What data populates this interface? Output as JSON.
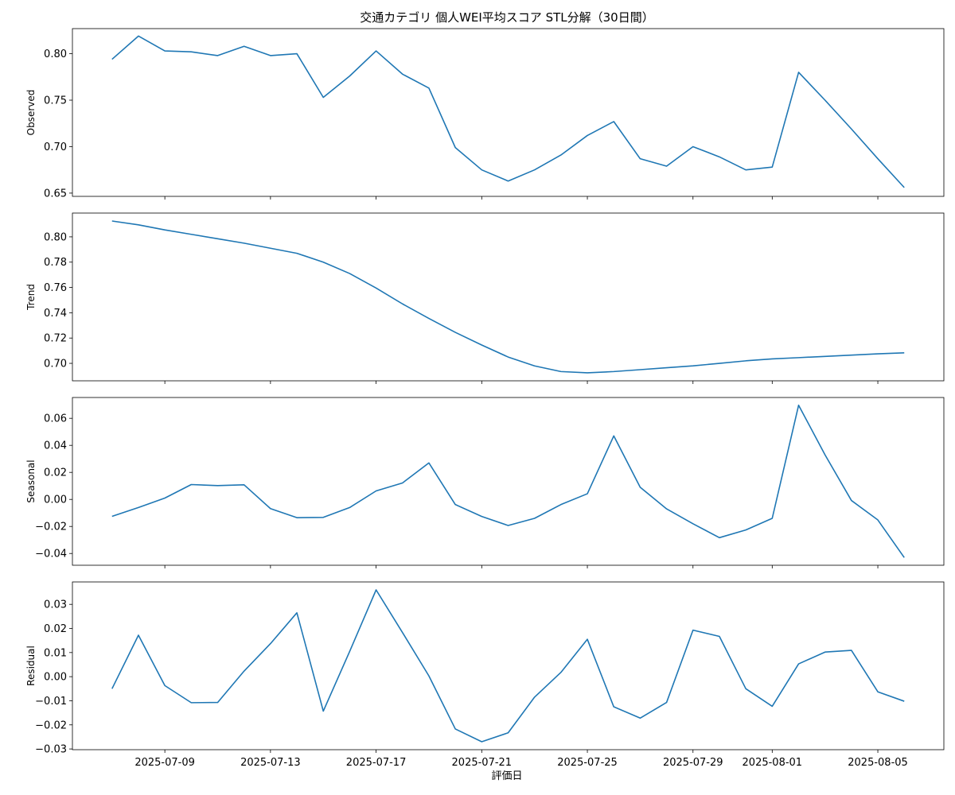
{
  "figure": {
    "title": "交通カテゴリ 個人WEI平均スコア STL分解（30日間）",
    "xlabel": "評価日"
  },
  "chart_data": [
    {
      "type": "line",
      "ylabel": "Observed",
      "series": [
        {
          "color": "#1f77b4",
          "x": [
            "2025-07-07",
            "2025-07-08",
            "2025-07-09",
            "2025-07-10",
            "2025-07-11",
            "2025-07-12",
            "2025-07-13",
            "2025-07-14",
            "2025-07-15",
            "2025-07-16",
            "2025-07-17",
            "2025-07-18",
            "2025-07-19",
            "2025-07-20",
            "2025-07-21",
            "2025-07-22",
            "2025-07-23",
            "2025-07-24",
            "2025-07-25",
            "2025-07-26",
            "2025-07-27",
            "2025-07-28",
            "2025-07-29",
            "2025-07-30",
            "2025-07-31",
            "2025-08-01",
            "2025-08-02",
            "2025-08-03",
            "2025-08-04",
            "2025-08-05",
            "2025-08-06"
          ],
          "values": [
            0.794,
            0.819,
            0.803,
            0.802,
            0.798,
            0.808,
            0.798,
            0.8,
            0.753,
            0.776,
            0.803,
            0.778,
            0.763,
            0.699,
            0.675,
            0.663,
            0.675,
            0.691,
            0.712,
            0.727,
            0.687,
            0.679,
            0.7,
            0.689,
            0.675,
            0.678,
            0.78,
            0.75,
            0.719,
            0.687,
            0.656
          ]
        }
      ],
      "yticks": [
        0.65,
        0.7,
        0.75,
        0.8
      ],
      "ytick_labels": [
        "0.65",
        "0.70",
        "0.75",
        "0.80"
      ],
      "ylim": [
        0.6465,
        0.827
      ]
    },
    {
      "type": "line",
      "ylabel": "Trend",
      "series": [
        {
          "color": "#1f77b4",
          "x": [
            "2025-07-07",
            "2025-07-08",
            "2025-07-09",
            "2025-07-10",
            "2025-07-11",
            "2025-07-12",
            "2025-07-13",
            "2025-07-14",
            "2025-07-15",
            "2025-07-16",
            "2025-07-17",
            "2025-07-18",
            "2025-07-19",
            "2025-07-20",
            "2025-07-21",
            "2025-07-22",
            "2025-07-23",
            "2025-07-24",
            "2025-07-25",
            "2025-07-26",
            "2025-07-27",
            "2025-07-28",
            "2025-07-29",
            "2025-07-30",
            "2025-07-31",
            "2025-08-01",
            "2025-08-02",
            "2025-08-03",
            "2025-08-04",
            "2025-08-05",
            "2025-08-06"
          ],
          "values": [
            0.8125,
            0.8095,
            0.8055,
            0.802,
            0.7985,
            0.795,
            0.791,
            0.787,
            0.78,
            0.771,
            0.7595,
            0.747,
            0.7355,
            0.7245,
            0.7145,
            0.705,
            0.698,
            0.6935,
            0.6925,
            0.6935,
            0.695,
            0.6965,
            0.698,
            0.7,
            0.702,
            0.7035,
            0.7045,
            0.7055,
            0.7065,
            0.7075,
            0.7083
          ]
        }
      ],
      "yticks": [
        0.7,
        0.72,
        0.74,
        0.76,
        0.78,
        0.8
      ],
      "ytick_labels": [
        "0.70",
        "0.72",
        "0.74",
        "0.76",
        "0.78",
        "0.80"
      ],
      "ylim": [
        0.6862,
        0.8188
      ]
    },
    {
      "type": "line",
      "ylabel": "Seasonal",
      "series": [
        {
          "color": "#1f77b4",
          "x": [
            "2025-07-07",
            "2025-07-08",
            "2025-07-09",
            "2025-07-10",
            "2025-07-11",
            "2025-07-12",
            "2025-07-13",
            "2025-07-14",
            "2025-07-15",
            "2025-07-16",
            "2025-07-17",
            "2025-07-18",
            "2025-07-19",
            "2025-07-20",
            "2025-07-21",
            "2025-07-22",
            "2025-07-23",
            "2025-07-24",
            "2025-07-25",
            "2025-07-26",
            "2025-07-27",
            "2025-07-28",
            "2025-07-29",
            "2025-07-30",
            "2025-07-31",
            "2025-08-01",
            "2025-08-02",
            "2025-08-03",
            "2025-08-04",
            "2025-08-05",
            "2025-08-06"
          ],
          "values": [
            -0.0125,
            -0.006,
            0.001,
            0.011,
            0.0102,
            0.0108,
            -0.0068,
            -0.0135,
            -0.0133,
            -0.006,
            0.0063,
            0.0122,
            0.027,
            -0.0038,
            -0.0126,
            -0.0193,
            -0.014,
            -0.0038,
            0.0042,
            0.047,
            0.009,
            -0.007,
            -0.018,
            -0.0283,
            -0.0226,
            -0.014,
            0.0697,
            0.033,
            -0.0008,
            -0.0152,
            -0.043
          ]
        }
      ],
      "yticks": [
        -0.04,
        -0.02,
        0.0,
        0.02,
        0.04,
        0.06
      ],
      "ytick_labels": [
        "−0.04",
        "−0.02",
        "0.00",
        "0.02",
        "0.04",
        "0.06"
      ],
      "ylim": [
        -0.0487,
        0.0754
      ]
    },
    {
      "type": "line",
      "ylabel": "Residual",
      "series": [
        {
          "color": "#1f77b4",
          "x": [
            "2025-07-07",
            "2025-07-08",
            "2025-07-09",
            "2025-07-10",
            "2025-07-11",
            "2025-07-12",
            "2025-07-13",
            "2025-07-14",
            "2025-07-15",
            "2025-07-16",
            "2025-07-17",
            "2025-07-18",
            "2025-07-19",
            "2025-07-20",
            "2025-07-21",
            "2025-07-22",
            "2025-07-23",
            "2025-07-24",
            "2025-07-25",
            "2025-07-26",
            "2025-07-27",
            "2025-07-28",
            "2025-07-29",
            "2025-07-30",
            "2025-07-31",
            "2025-08-01",
            "2025-08-02",
            "2025-08-03",
            "2025-08-04",
            "2025-08-05",
            "2025-08-06"
          ],
          "values": [
            -0.005,
            0.0172,
            -0.0037,
            -0.0108,
            -0.0107,
            0.0023,
            0.0137,
            0.0265,
            -0.0143,
            0.0105,
            0.036,
            0.0183,
            0.0003,
            -0.0217,
            -0.027,
            -0.0233,
            -0.0085,
            0.0018,
            0.0155,
            -0.0125,
            -0.0172,
            -0.0107,
            0.0193,
            0.0167,
            -0.005,
            -0.0123,
            0.0053,
            0.0102,
            0.0109,
            -0.0063,
            -0.0102
          ]
        }
      ],
      "yticks": [
        -0.03,
        -0.02,
        -0.01,
        0.0,
        0.01,
        0.02,
        0.03
      ],
      "ytick_labels": [
        "−0.03",
        "−0.02",
        "−0.01",
        "0.00",
        "0.01",
        "0.02",
        "0.03"
      ],
      "ylim": [
        -0.0303,
        0.0393
      ]
    }
  ],
  "x_axis": {
    "ticks": [
      "2025-07-09",
      "2025-07-13",
      "2025-07-17",
      "2025-07-21",
      "2025-07-25",
      "2025-07-29",
      "2025-08-01",
      "2025-08-05"
    ],
    "tick_labels": [
      "2025-07-09",
      "2025-07-13",
      "2025-07-17",
      "2025-07-21",
      "2025-07-25",
      "2025-07-29",
      "2025-08-01",
      "2025-08-05"
    ]
  }
}
